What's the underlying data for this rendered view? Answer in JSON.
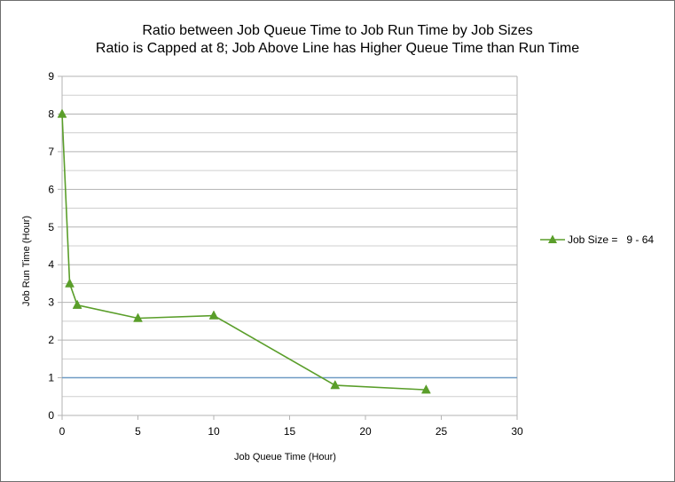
{
  "chart_data": {
    "type": "line",
    "title": "Ratio between Job Queue Time to Job Run Time by Job Sizes",
    "subtitle": "Ratio is Capped at 8; Job Above Line has Higher Queue Time than Run Time",
    "xlabel": "Job Queue Time (Hour)",
    "ylabel": "Job Run Time (Hour)",
    "xlim": [
      0,
      30
    ],
    "ylim": [
      0,
      9
    ],
    "xticks": [
      0,
      5,
      10,
      15,
      20,
      25,
      30
    ],
    "yticks": [
      0,
      1,
      2,
      3,
      4,
      5,
      6,
      7,
      8,
      9
    ],
    "grid": "horizontal",
    "legend_position": "right",
    "series": [
      {
        "name": "Job Size =   9 - 64",
        "color": "#5a9e2a",
        "marker": "triangle",
        "x": [
          0,
          0.5,
          1,
          5,
          10,
          18,
          24
        ],
        "y": [
          8.0,
          3.5,
          2.93,
          2.58,
          2.65,
          0.8,
          0.68
        ]
      }
    ],
    "reference_line": {
      "y": 1,
      "color": "#6f9bc4"
    }
  }
}
